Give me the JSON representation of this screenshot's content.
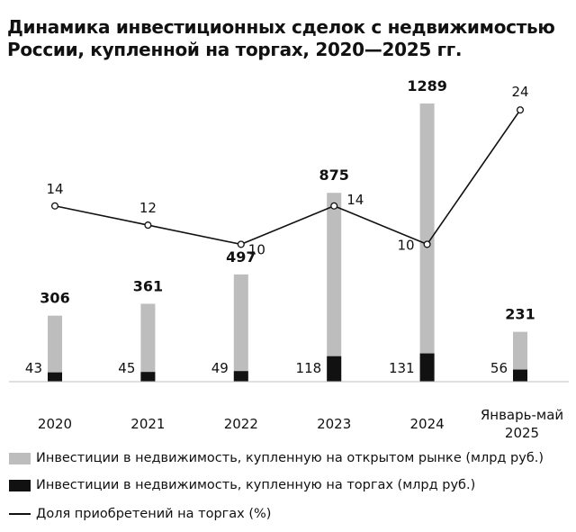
{
  "chart_data": {
    "type": "bar",
    "title": "Динамика инвестиционных сделок с недвижимостью России, купленной на торгах, 2020—2025 гг.",
    "categories": [
      "2020",
      "2021",
      "2022",
      "2023",
      "2024",
      "Январь-май 2025"
    ],
    "series": [
      {
        "name": "Инвестиции в недвижимость, купленную на открытом рынке (млрд руб.)",
        "kind": "bar",
        "color": "#bdbdbe",
        "values": [
          306,
          361,
          497,
          875,
          1289,
          231
        ]
      },
      {
        "name": "Инвестиции в недвижимость, купленную на торгах (млрд руб.)",
        "kind": "bar",
        "color": "#111111",
        "values": [
          43,
          45,
          49,
          118,
          131,
          56
        ]
      },
      {
        "name": "Доля приобретений на торгах (%)",
        "kind": "line",
        "color": "#111111",
        "values": [
          14,
          12,
          10,
          14,
          10,
          24
        ]
      }
    ],
    "legend_position": "bottom",
    "grid": false
  }
}
